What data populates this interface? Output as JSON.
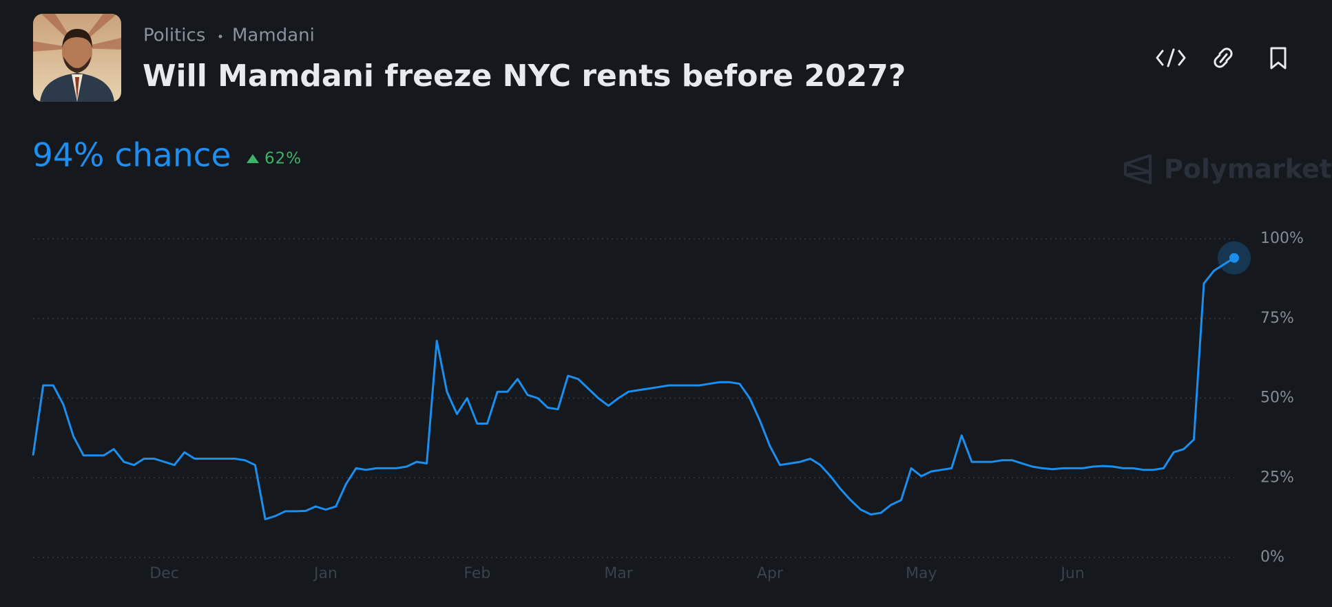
{
  "header": {
    "category": "Politics",
    "tag": "Mamdani",
    "title": "Will Mamdani freeze NYC rents before 2027?"
  },
  "headline": {
    "chance": "94% chance",
    "change": "62%"
  },
  "brand": "Polymarket",
  "chart_data": {
    "type": "line",
    "color": "#1a8ff0",
    "categories": [
      null,
      null,
      null,
      null,
      null,
      null,
      null,
      null,
      null,
      null,
      null,
      null,
      null,
      "Dec",
      null,
      null,
      null,
      null,
      null,
      null,
      null,
      null,
      null,
      null,
      null,
      null,
      null,
      null,
      null,
      "Jan",
      null,
      null,
      null,
      null,
      null,
      null,
      null,
      null,
      null,
      null,
      null,
      null,
      null,
      null,
      "Feb",
      null,
      null,
      null,
      null,
      null,
      null,
      null,
      null,
      null,
      null,
      null,
      null,
      null,
      "Mar",
      null,
      null,
      null,
      null,
      null,
      null,
      null,
      null,
      null,
      null,
      null,
      null,
      null,
      null,
      "Apr",
      null,
      null,
      null,
      null,
      null,
      null,
      null,
      null,
      null,
      null,
      null,
      null,
      null,
      null,
      "May",
      null,
      null,
      null,
      null,
      null,
      null,
      null,
      null,
      null,
      null,
      null,
      null,
      null,
      null,
      "Jun",
      null,
      null,
      null,
      null,
      null,
      null,
      null,
      null,
      null,
      null,
      null,
      null,
      null,
      null,
      null,
      null
    ],
    "values": [
      32,
      54,
      54,
      48,
      38,
      32,
      32,
      32,
      34,
      30,
      29,
      31,
      31,
      30,
      29,
      33,
      31,
      31,
      31,
      31,
      31,
      30.5,
      29,
      12,
      13,
      14.5,
      14.5,
      14.6,
      16,
      15,
      16,
      23,
      28,
      27.5,
      28,
      28,
      28,
      28.5,
      30,
      29.5,
      68,
      52,
      45,
      50,
      42,
      42,
      52,
      52,
      56,
      51,
      50,
      47,
      46.5,
      57,
      56,
      53,
      50,
      47.6,
      50,
      52,
      52.5,
      53,
      53.5,
      54,
      54,
      54,
      54,
      54.5,
      55,
      55,
      54.5,
      50,
      43,
      35,
      29,
      29.5,
      30,
      31,
      29,
      25.5,
      21.5,
      18,
      15,
      13.5,
      14,
      16.5,
      18,
      28,
      25.5,
      27,
      27.5,
      28,
      38.3,
      30,
      30,
      30,
      30.5,
      30.5,
      29.5,
      28.5,
      28,
      27.7,
      28,
      28,
      28,
      28.5,
      28.7,
      28.5,
      28,
      28,
      27.5,
      27.5,
      28,
      33,
      34,
      37,
      86,
      90,
      92,
      94
    ],
    "ylim": [
      0,
      100
    ],
    "yticks": [
      {
        "value": 0,
        "label": "0%"
      },
      {
        "value": 25,
        "label": "25%"
      },
      {
        "value": 50,
        "label": "50%"
      },
      {
        "value": 75,
        "label": "75%"
      },
      {
        "value": 100,
        "label": "100%"
      }
    ],
    "grid": true
  }
}
